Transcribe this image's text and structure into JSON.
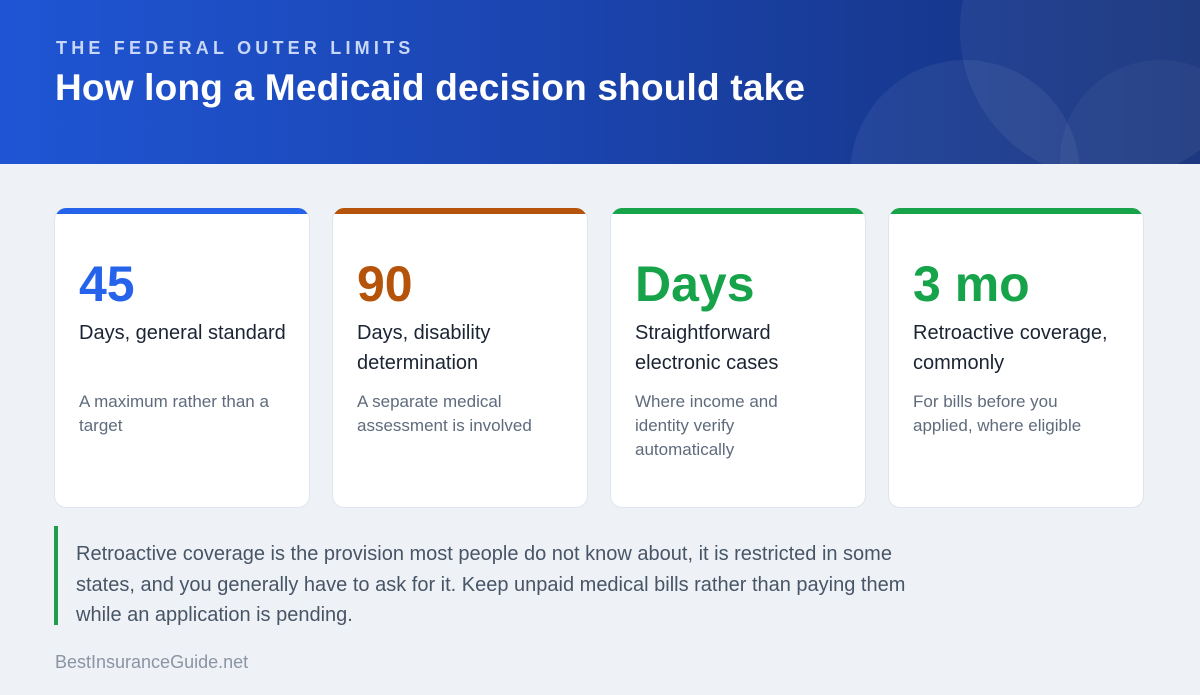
{
  "header": {
    "eyebrow": "THE FEDERAL OUTER LIMITS",
    "title": "How long a Medicaid decision should take"
  },
  "cards": [
    {
      "value": "45",
      "label": "Days, general standard",
      "description": "A maximum rather than a target",
      "accent": "#2563eb"
    },
    {
      "value": "90",
      "label": "Days, disability determination",
      "description": "A separate medical assessment is involved",
      "accent": "#b45309"
    },
    {
      "value": "Days",
      "label": "Straightforward electronic cases",
      "description": "Where income and identity verify automatically",
      "accent": "#16a34a"
    },
    {
      "value": "3 mo",
      "label": "Retroactive coverage, commonly",
      "description": "For bills before you applied, where eligible",
      "accent": "#16a34a"
    }
  ],
  "note": {
    "text": "Retroactive coverage is the provision most people do not know about, it is restricted in some states, and you generally have to ask for it. Keep unpaid medical bills rather than paying them while an application is pending.",
    "accent": "#1f9d4a"
  },
  "footer": {
    "source": "BestInsuranceGuide.net"
  }
}
